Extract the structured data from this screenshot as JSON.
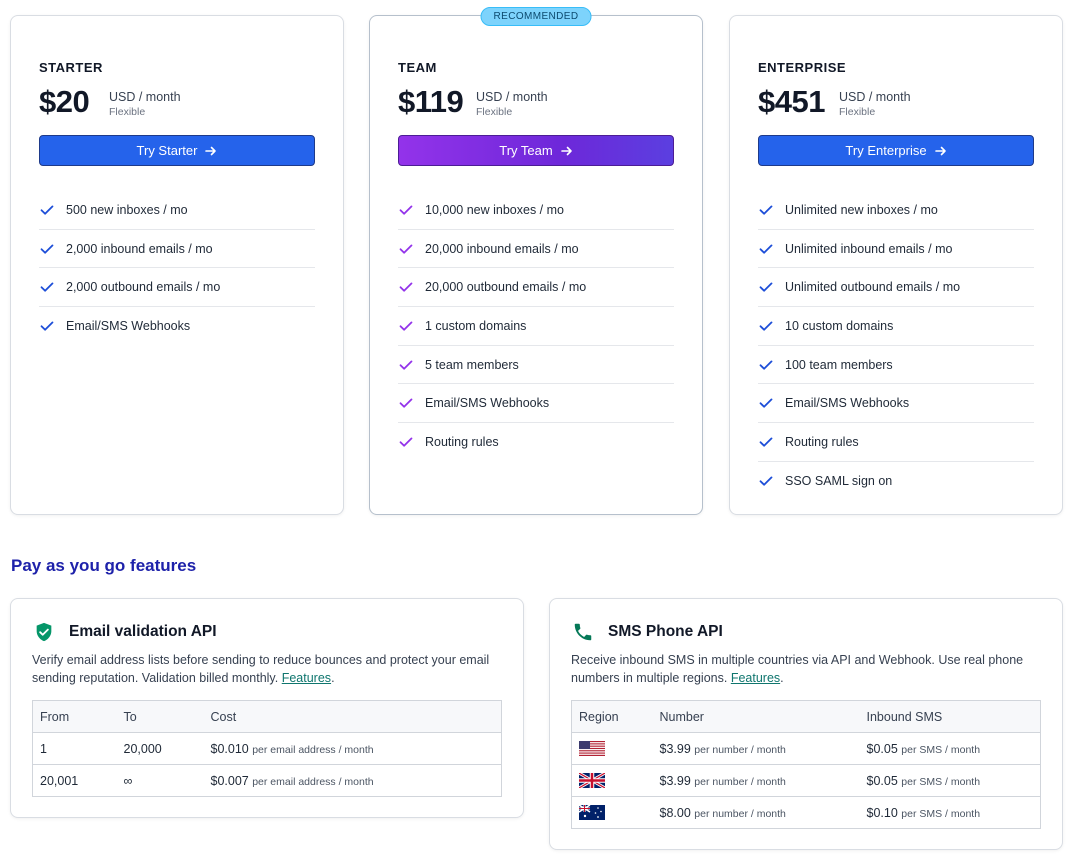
{
  "plans": [
    {
      "name": "STARTER",
      "price": "$20",
      "unit": "USD / month",
      "sub": "Flexible",
      "cta": "Try Starter",
      "features": [
        "500 new inboxes / mo",
        "2,000 inbound emails / mo",
        "2,000 outbound emails / mo",
        "Email/SMS Webhooks"
      ]
    },
    {
      "name": "TEAM",
      "price": "$119",
      "unit": "USD / month",
      "sub": "Flexible",
      "cta": "Try Team",
      "badge": "RECOMMENDED",
      "features": [
        "10,000 new inboxes / mo",
        "20,000 inbound emails / mo",
        "20,000 outbound emails / mo",
        "1 custom domains",
        "5 team members",
        "Email/SMS Webhooks",
        "Routing rules"
      ]
    },
    {
      "name": "ENTERPRISE",
      "price": "$451",
      "unit": "USD / month",
      "sub": "Flexible",
      "cta": "Try Enterprise",
      "features": [
        "Unlimited new inboxes / mo",
        "Unlimited inbound emails / mo",
        "Unlimited outbound emails / mo",
        "10 custom domains",
        "100 team members",
        "Email/SMS Webhooks",
        "Routing rules",
        "SSO SAML sign on"
      ]
    }
  ],
  "colors": {
    "blue_check": "#1d4ed8",
    "purple_check": "#9333ea",
    "shield": "#059669",
    "phone": "#047857"
  },
  "payg": {
    "title": "Pay as you go features",
    "email": {
      "title": "Email validation API",
      "desc": "Verify email address lists before sending to reduce bounces and protect your email sending reputation. Validation billed monthly.",
      "link": "Features",
      "headers": [
        "From",
        "To",
        "Cost"
      ],
      "rows": [
        {
          "from": "1",
          "to": "20,000",
          "cost": "$0.010",
          "per": "per email address / month"
        },
        {
          "from": "20,001",
          "to": "∞",
          "cost": "$0.007",
          "per": "per email address / month"
        }
      ]
    },
    "sms": {
      "title": "SMS Phone API",
      "desc": "Receive inbound SMS in multiple countries via API and Webhook. Use real phone numbers in multiple regions.",
      "link": "Features",
      "headers": [
        "Region",
        "Number",
        "Inbound SMS"
      ],
      "rows": [
        {
          "flag": "us-flag-icon",
          "number": "$3.99",
          "number_per": "per number / month",
          "sms": "$0.05",
          "sms_per": "per SMS / month"
        },
        {
          "flag": "uk-flag-icon",
          "number": "$3.99",
          "number_per": "per number / month",
          "sms": "$0.05",
          "sms_per": "per SMS / month"
        },
        {
          "flag": "au-flag-icon",
          "number": "$8.00",
          "number_per": "per number / month",
          "sms": "$0.10",
          "sms_per": "per SMS / month"
        }
      ]
    }
  }
}
